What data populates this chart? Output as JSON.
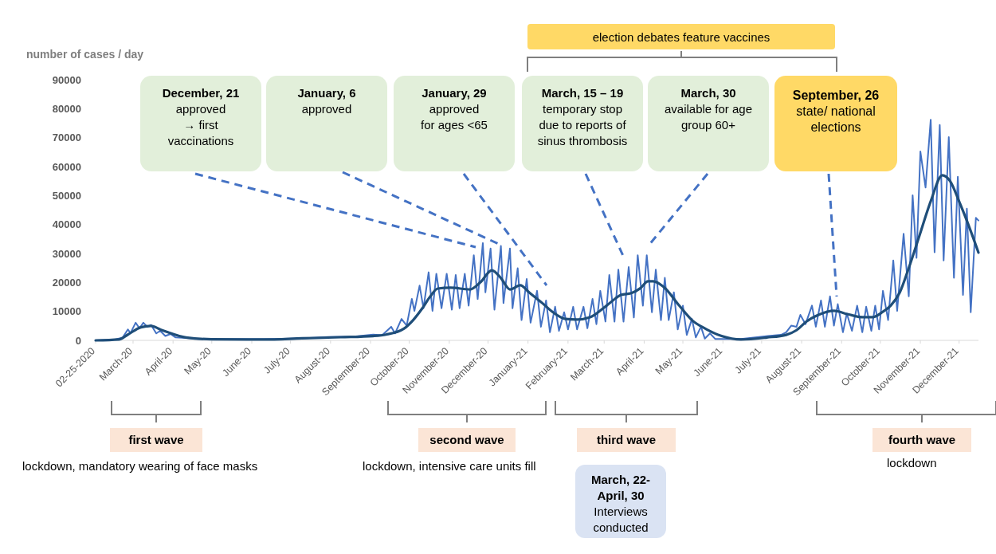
{
  "chart_data": {
    "type": "line",
    "ylabel": "number of cases / day",
    "xlim": [
      "2020-02-25",
      "2022-01-09"
    ],
    "xticks": [
      {
        "value": "2020-02-25",
        "label": "02-25-2020"
      },
      {
        "value": "2020-03-25",
        "label": "March-20"
      },
      {
        "value": "2020-04-25",
        "label": "April-20"
      },
      {
        "value": "2020-05-25",
        "label": "May-20"
      },
      {
        "value": "2020-06-25",
        "label": "June-20"
      },
      {
        "value": "2020-07-25",
        "label": "July-20"
      },
      {
        "value": "2020-08-25",
        "label": "August-20"
      },
      {
        "value": "2020-09-25",
        "label": "September-20"
      },
      {
        "value": "2020-10-25",
        "label": "October-20"
      },
      {
        "value": "2020-11-25",
        "label": "November-20"
      },
      {
        "value": "2020-12-25",
        "label": "December-20"
      },
      {
        "value": "2021-01-25",
        "label": "January-21"
      },
      {
        "value": "2021-02-25",
        "label": "February-21"
      },
      {
        "value": "2021-03-25",
        "label": "March-21"
      },
      {
        "value": "2021-04-25",
        "label": "April-21"
      },
      {
        "value": "2021-05-25",
        "label": "May-21"
      },
      {
        "value": "2021-06-25",
        "label": "June-21"
      },
      {
        "value": "2021-07-25",
        "label": "July-21"
      },
      {
        "value": "2021-08-25",
        "label": "August-21"
      },
      {
        "value": "2021-09-25",
        "label": "September-21"
      },
      {
        "value": "2021-10-25",
        "label": "October-21"
      },
      {
        "value": "2021-11-25",
        "label": "November-21"
      },
      {
        "value": "2021-12-25",
        "label": "December-21"
      }
    ],
    "ylim": [
      0,
      90000
    ],
    "yticks": [
      0,
      10000,
      20000,
      30000,
      40000,
      50000,
      60000,
      70000,
      80000,
      90000
    ],
    "series": [
      {
        "color": "#4472c4",
        "x": [
          "2020-02-25",
          "2020-03-11",
          "2020-03-17",
          "2020-03-21",
          "2020-03-23",
          "2020-03-27",
          "2020-03-30",
          "2020-04-02",
          "2020-04-05",
          "2020-04-08",
          "2020-04-12",
          "2020-04-15",
          "2020-04-19",
          "2020-04-23",
          "2020-04-27",
          "2020-05-05",
          "2020-05-15",
          "2020-06-04",
          "2020-07-04",
          "2020-08-03",
          "2020-08-23",
          "2020-09-12",
          "2020-09-27",
          "2020-10-04",
          "2020-10-11",
          "2020-10-14",
          "2020-10-19",
          "2020-10-23",
          "2020-10-27",
          "2020-10-29",
          "2020-11-02",
          "2020-11-05",
          "2020-11-09",
          "2020-11-12",
          "2020-11-15",
          "2020-11-19",
          "2020-11-23",
          "2020-11-27",
          "2020-11-30",
          "2020-12-03",
          "2020-12-07",
          "2020-12-10",
          "2020-12-14",
          "2020-12-17",
          "2020-12-21",
          "2020-12-23",
          "2020-12-27",
          "2020-12-30",
          "2021-01-04",
          "2021-01-06",
          "2021-01-11",
          "2021-01-13",
          "2021-01-17",
          "2021-01-20",
          "2021-01-24",
          "2021-01-27",
          "2021-02-01",
          "2021-02-04",
          "2021-02-08",
          "2021-02-11",
          "2021-02-15",
          "2021-02-18",
          "2021-02-22",
          "2021-02-25",
          "2021-03-01",
          "2021-03-04",
          "2021-03-09",
          "2021-03-12",
          "2021-03-16",
          "2021-03-19",
          "2021-03-22",
          "2021-03-26",
          "2021-03-29",
          "2021-04-02",
          "2021-04-05",
          "2021-04-09",
          "2021-04-13",
          "2021-04-17",
          "2021-04-20",
          "2021-04-24",
          "2021-04-27",
          "2021-05-01",
          "2021-05-04",
          "2021-05-08",
          "2021-05-11",
          "2021-05-14",
          "2021-05-18",
          "2021-05-21",
          "2021-05-25",
          "2021-05-28",
          "2021-06-01",
          "2021-06-04",
          "2021-06-08",
          "2021-06-11",
          "2021-06-15",
          "2021-06-19",
          "2021-07-09",
          "2021-07-30",
          "2021-08-09",
          "2021-08-13",
          "2021-08-17",
          "2021-08-21",
          "2021-08-24",
          "2021-08-28",
          "2021-09-02",
          "2021-09-05",
          "2021-09-09",
          "2021-09-12",
          "2021-09-16",
          "2021-09-19",
          "2021-09-22",
          "2021-09-26",
          "2021-09-29",
          "2021-10-03",
          "2021-10-07",
          "2021-10-11",
          "2021-10-14",
          "2021-10-18",
          "2021-10-21",
          "2021-10-24",
          "2021-10-27",
          "2021-10-31",
          "2021-11-04",
          "2021-11-07",
          "2021-11-12",
          "2021-11-16",
          "2021-11-19",
          "2021-11-22",
          "2021-11-25",
          "2021-11-29",
          "2021-12-03",
          "2021-12-06",
          "2021-12-10",
          "2021-12-13",
          "2021-12-17",
          "2021-12-21",
          "2021-12-24",
          "2021-12-28",
          "2021-12-31",
          "2022-01-03",
          "2022-01-07",
          "2022-01-09"
        ],
        "values": [
          0,
          300,
          1000,
          3800,
          2500,
          6100,
          4200,
          6100,
          4700,
          5300,
          2400,
          3300,
          1500,
          2200,
          1000,
          800,
          500,
          400,
          400,
          700,
          1200,
          1300,
          2000,
          1800,
          4700,
          2400,
          7400,
          5100,
          14300,
          10200,
          18900,
          11100,
          23500,
          10200,
          23000,
          11100,
          23000,
          10600,
          22600,
          11100,
          23000,
          12000,
          29400,
          14300,
          33600,
          16600,
          31700,
          10600,
          32600,
          12900,
          31700,
          11100,
          24900,
          7000,
          21200,
          6100,
          17100,
          4700,
          13800,
          2800,
          11600,
          3300,
          9700,
          3800,
          11600,
          3800,
          11600,
          4200,
          14300,
          5600,
          17100,
          6500,
          22600,
          6500,
          24400,
          6500,
          25300,
          7900,
          29400,
          12000,
          29400,
          9700,
          24400,
          7000,
          21600,
          7000,
          16600,
          3800,
          12000,
          1900,
          7400,
          1000,
          4700,
          600,
          2400,
          500,
          500,
          1500,
          1900,
          2800,
          5100,
          4700,
          8800,
          5600,
          12000,
          4700,
          13800,
          4700,
          15200,
          5100,
          12500,
          2800,
          9300,
          3300,
          12000,
          2800,
          11600,
          3300,
          12000,
          3800,
          17100,
          7000,
          27600,
          10200,
          36800,
          15200,
          50100,
          28500,
          65200,
          52800,
          76200,
          30400,
          74400,
          27600,
          70200,
          21600,
          56500,
          15700,
          45500,
          9700,
          42300,
          41400
        ]
      },
      {
        "color": "#1f4e79",
        "x": [
          "2020-02-25",
          "2020-03-14",
          "2020-03-21",
          "2020-03-31",
          "2020-04-08",
          "2020-04-15",
          "2020-04-21",
          "2020-05-05",
          "2020-05-25",
          "2020-07-04",
          "2020-08-03",
          "2020-09-02",
          "2020-09-27",
          "2020-10-07",
          "2020-10-21",
          "2020-10-28",
          "2020-11-04",
          "2020-11-10",
          "2020-11-16",
          "2020-11-26",
          "2020-12-11",
          "2020-12-19",
          "2020-12-28",
          "2021-01-04",
          "2021-01-11",
          "2021-01-19",
          "2021-01-26",
          "2021-02-05",
          "2021-02-14",
          "2021-02-23",
          "2021-03-04",
          "2021-03-14",
          "2021-03-24",
          "2021-03-31",
          "2021-04-07",
          "2021-04-15",
          "2021-04-22",
          "2021-04-28",
          "2021-05-02",
          "2021-05-10",
          "2021-05-22",
          "2021-06-01",
          "2021-06-12",
          "2021-06-24",
          "2021-07-09",
          "2021-07-29",
          "2021-08-13",
          "2021-08-21",
          "2021-08-29",
          "2021-09-07",
          "2021-09-19",
          "2021-09-30",
          "2021-10-11",
          "2021-10-19",
          "2021-10-26",
          "2021-11-02",
          "2021-11-09",
          "2021-11-16",
          "2021-11-24",
          "2021-12-03",
          "2021-12-12",
          "2021-12-18",
          "2021-12-25",
          "2021-12-31",
          "2022-01-09"
        ],
        "values": [
          0,
          300,
          2000,
          4500,
          5000,
          3800,
          2800,
          1000,
          400,
          300,
          700,
          1100,
          1500,
          2000,
          4100,
          7000,
          11000,
          15000,
          17900,
          18200,
          17600,
          20000,
          24200,
          21500,
          17600,
          19000,
          16500,
          12900,
          9500,
          7400,
          7200,
          8000,
          11000,
          13500,
          15700,
          16300,
          18000,
          20400,
          20400,
          18500,
          12100,
          7000,
          3900,
          1500,
          300,
          1000,
          1900,
          3500,
          6600,
          8800,
          10200,
          9000,
          8000,
          8000,
          9600,
          12000,
          16500,
          25000,
          35800,
          48000,
          57000,
          55000,
          48000,
          41300,
          30300
        ]
      }
    ],
    "annotations": [
      "election debates feature vaccines",
      "December, 21\napproved\n→ first\nvaccinations",
      "January, 6\napproved",
      "January, 29\napproved\nfor ages <65",
      "March, 15 – 19\ntemporary stop\ndue to reports of\nsinus thrombosis",
      "March, 30\navailable for age\ngroup 60+",
      "September, 26\nstate/ national\nelections",
      "first wave",
      "lockdown, mandatory wearing of face masks",
      "second wave",
      "lockdown, intensive care units fill",
      "third wave",
      "March, 22-\nApril, 30\nInterviews\nconducted",
      "fourth wave",
      "lockdown"
    ]
  }
}
